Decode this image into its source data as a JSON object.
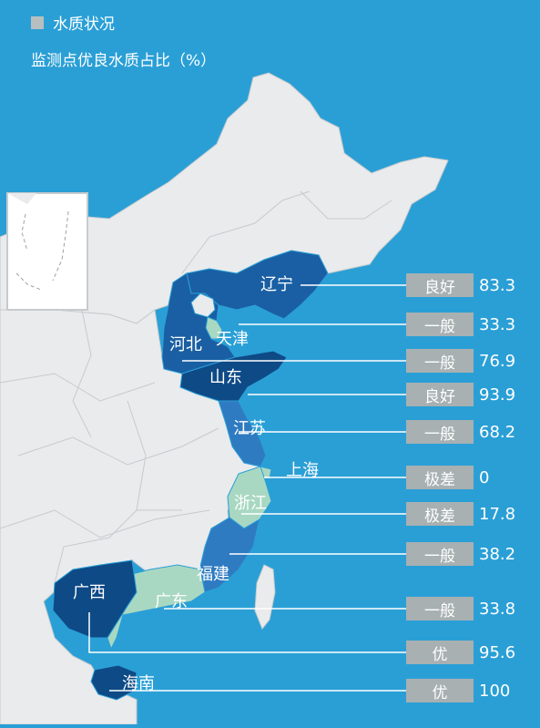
{
  "legend": {
    "swatch_color": "#b8bfc0",
    "label": "水质状况"
  },
  "subtitle": "监测点优良水质占比（%）",
  "colors": {
    "sea": "#2a9fd6",
    "land": "#e9ebec",
    "border": "#c7cbcd",
    "excellent": "#0e4a86",
    "good": "#1a5fa3",
    "fair": "#2f7bc2",
    "poor": "#a9d8c2",
    "leader": "#ffffff"
  },
  "provinces": [
    {
      "id": "liaoning",
      "name": "辽宁",
      "status": "良好",
      "value": "83.3"
    },
    {
      "id": "tianjin",
      "name": "天津",
      "status": "一般",
      "value": "33.3"
    },
    {
      "id": "hebei",
      "name": "河北",
      "status": "一般",
      "value": "76.9"
    },
    {
      "id": "shandong",
      "name": "山东",
      "status": "良好",
      "value": "93.9"
    },
    {
      "id": "jiangsu",
      "name": "江苏",
      "status": "一般",
      "value": "68.2"
    },
    {
      "id": "shanghai",
      "name": "上海",
      "status": "极差",
      "value": "0"
    },
    {
      "id": "zhejiang",
      "name": "浙江",
      "status": "极差",
      "value": "17.8"
    },
    {
      "id": "fujian",
      "name": "福建",
      "status": "一般",
      "value": "38.2"
    },
    {
      "id": "guangdong",
      "name": "广东",
      "status": "一般",
      "value": "33.8"
    },
    {
      "id": "guangxi",
      "name": "广西",
      "status": "优",
      "value": "95.6"
    },
    {
      "id": "hainan",
      "name": "海南",
      "status": "优",
      "value": "100"
    }
  ]
}
